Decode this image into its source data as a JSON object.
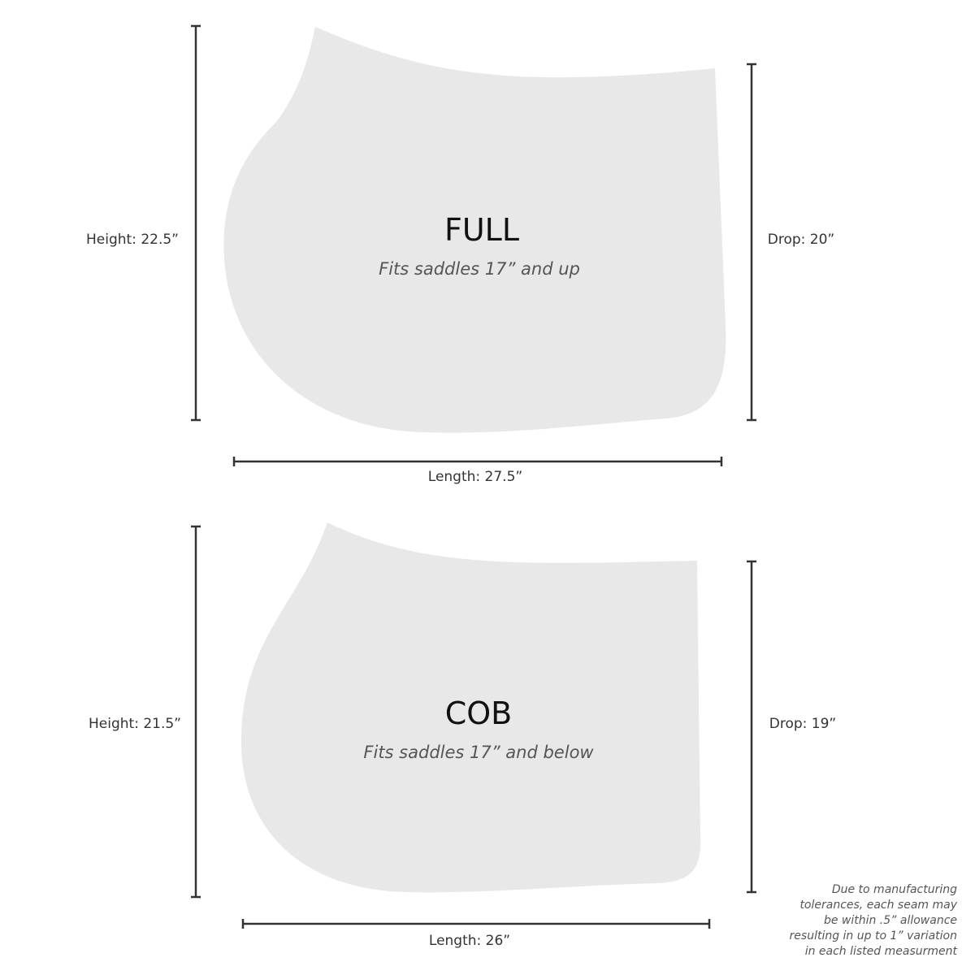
{
  "colors": {
    "pad_fill": "#e8e8e8",
    "line": "#333333"
  },
  "pads": [
    {
      "name": "FULL",
      "subtitle": "Fits saddles 17” and up",
      "height": "Height: 22.5”",
      "drop": "Drop: 20”",
      "length": "Length: 27.5”"
    },
    {
      "name": "COB",
      "subtitle": "Fits saddles 17” and below",
      "height": "Height: 21.5”",
      "drop": "Drop: 19”",
      "length": "Length: 26”"
    }
  ],
  "note": [
    "Due to manufacturing",
    "tolerances, each seam may",
    "be within .5” allowance",
    "resulting in up to 1” variation",
    "in each listed measurment"
  ]
}
